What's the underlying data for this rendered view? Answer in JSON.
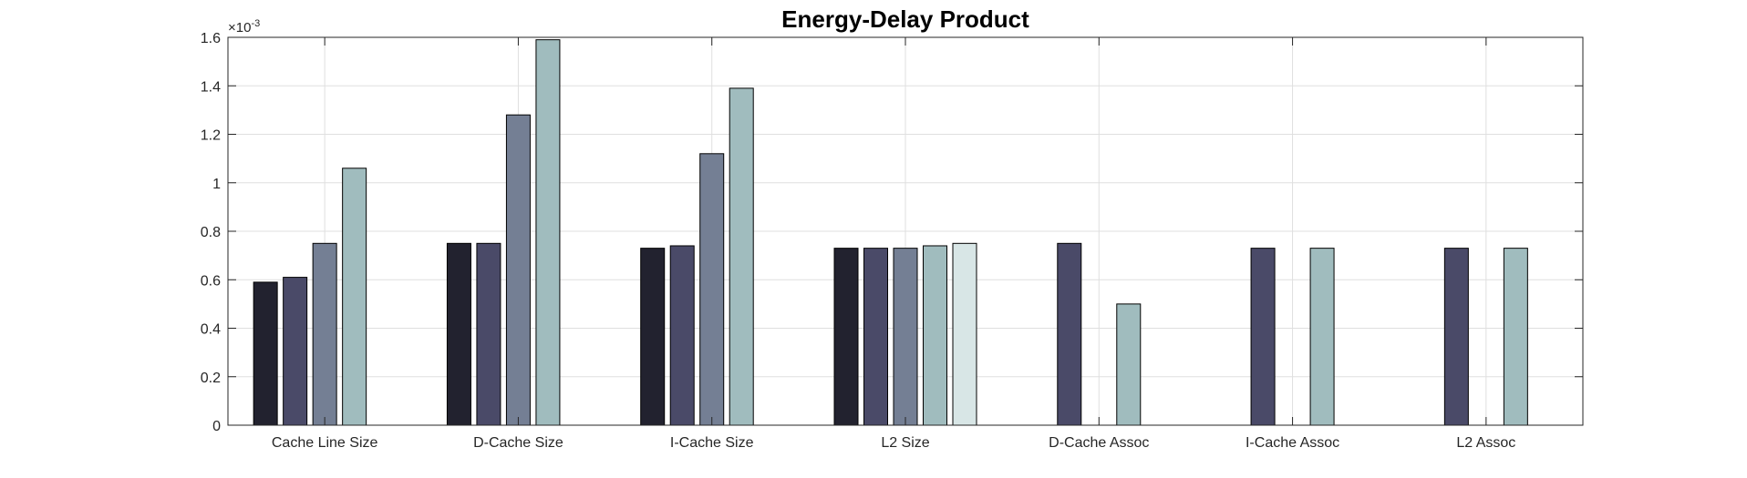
{
  "chart_data": {
    "type": "bar",
    "title": "Energy-Delay Product",
    "xlabel": "",
    "ylabel": "",
    "exponent_label": {
      "base": "×10",
      "exponent": "-3"
    },
    "ylim": [
      0,
      1.6
    ],
    "yticks": [
      "0",
      "0.2",
      "0.4",
      "0.6",
      "0.8",
      "1",
      "1.2",
      "1.4",
      "1.6"
    ],
    "grid": true,
    "categories": [
      "Cache Line Size",
      "D-Cache Size",
      "I-Cache Size",
      "L2 Size",
      "D-Cache Assoc",
      "I-Cache Assoc",
      "L2 Assoc"
    ],
    "series": [
      {
        "color": "#22222f",
        "values": [
          0.59,
          0.75,
          0.73,
          0.73,
          null,
          null,
          null
        ]
      },
      {
        "color": "#4a4a68",
        "values": [
          0.61,
          0.75,
          0.74,
          0.73,
          0.75,
          0.73,
          0.73
        ]
      },
      {
        "color": "#747f94",
        "values": [
          0.75,
          1.28,
          1.12,
          0.73,
          null,
          null,
          null
        ]
      },
      {
        "color": "#a0bcbe",
        "values": [
          1.06,
          1.59,
          1.39,
          0.74,
          0.5,
          0.73,
          0.73
        ]
      },
      {
        "color": "#d8e6e6",
        "values": [
          null,
          null,
          null,
          0.75,
          null,
          null,
          null
        ]
      }
    ]
  }
}
